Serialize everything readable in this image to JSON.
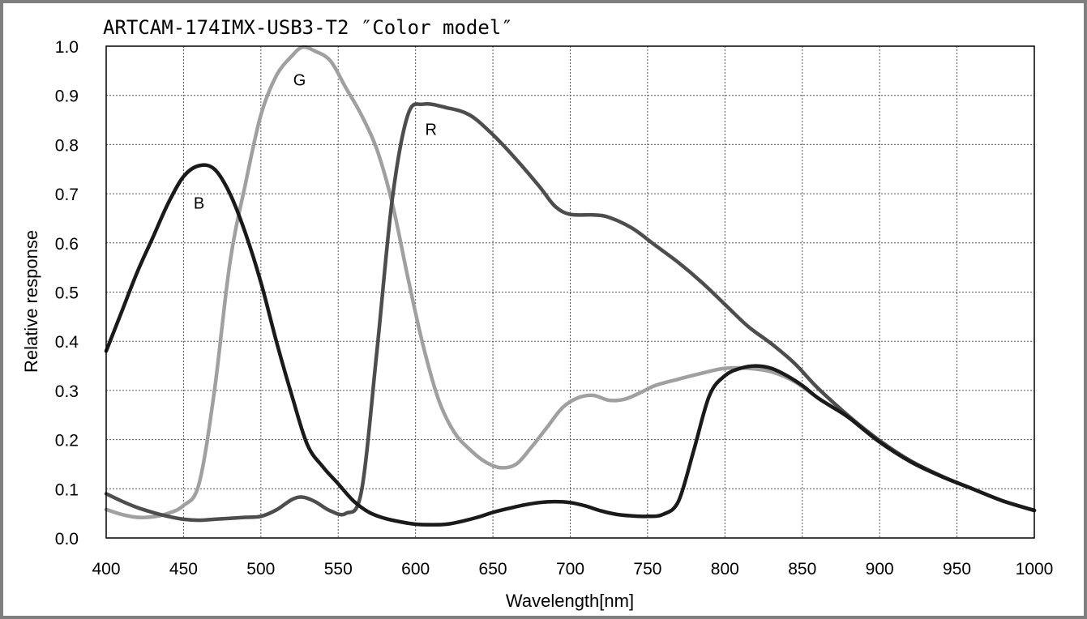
{
  "chart_data": {
    "type": "line",
    "title": "ARTCAM-174IMX-USB3-T2 ″Color model″",
    "xlabel": "Wavelength[nm]",
    "ylabel": "Relative response",
    "xlim": [
      400,
      1000
    ],
    "ylim": [
      0.0,
      1.0
    ],
    "x_ticks": [
      400,
      450,
      500,
      550,
      600,
      650,
      700,
      750,
      800,
      850,
      900,
      950,
      1000
    ],
    "y_ticks": [
      "0.0",
      "0.1",
      "0.2",
      "0.3",
      "0.4",
      "0.5",
      "0.6",
      "0.7",
      "0.8",
      "0.9",
      "1.0"
    ],
    "grid": true,
    "series": [
      {
        "name": "B",
        "color": "#1a1a1a",
        "label_at": [
          460,
          0.67
        ],
        "points": [
          [
            400,
            0.38
          ],
          [
            410,
            0.46
          ],
          [
            420,
            0.54
          ],
          [
            430,
            0.61
          ],
          [
            440,
            0.68
          ],
          [
            450,
            0.735
          ],
          [
            460,
            0.757
          ],
          [
            470,
            0.75
          ],
          [
            480,
            0.7
          ],
          [
            490,
            0.62
          ],
          [
            500,
            0.52
          ],
          [
            510,
            0.4
          ],
          [
            520,
            0.29
          ],
          [
            530,
            0.19
          ],
          [
            540,
            0.145
          ],
          [
            550,
            0.11
          ],
          [
            560,
            0.075
          ],
          [
            570,
            0.052
          ],
          [
            580,
            0.04
          ],
          [
            590,
            0.033
          ],
          [
            600,
            0.028
          ],
          [
            610,
            0.027
          ],
          [
            620,
            0.028
          ],
          [
            630,
            0.034
          ],
          [
            640,
            0.042
          ],
          [
            650,
            0.052
          ],
          [
            660,
            0.06
          ],
          [
            670,
            0.067
          ],
          [
            680,
            0.072
          ],
          [
            690,
            0.074
          ],
          [
            700,
            0.072
          ],
          [
            710,
            0.065
          ],
          [
            720,
            0.055
          ],
          [
            730,
            0.048
          ],
          [
            740,
            0.045
          ],
          [
            750,
            0.044
          ],
          [
            760,
            0.048
          ],
          [
            770,
            0.075
          ],
          [
            780,
            0.18
          ],
          [
            790,
            0.29
          ],
          [
            800,
            0.33
          ],
          [
            810,
            0.345
          ],
          [
            820,
            0.35
          ],
          [
            830,
            0.345
          ],
          [
            840,
            0.33
          ],
          [
            850,
            0.31
          ],
          [
            860,
            0.285
          ],
          [
            870,
            0.265
          ],
          [
            880,
            0.245
          ],
          [
            900,
            0.195
          ],
          [
            920,
            0.155
          ],
          [
            940,
            0.125
          ],
          [
            960,
            0.1
          ],
          [
            980,
            0.075
          ],
          [
            1000,
            0.056
          ]
        ]
      },
      {
        "name": "G",
        "color": "#a0a0a0",
        "label_at": [
          525,
          0.92
        ],
        "points": [
          [
            400,
            0.058
          ],
          [
            410,
            0.048
          ],
          [
            420,
            0.042
          ],
          [
            430,
            0.043
          ],
          [
            440,
            0.05
          ],
          [
            450,
            0.066
          ],
          [
            460,
            0.11
          ],
          [
            470,
            0.3
          ],
          [
            480,
            0.56
          ],
          [
            490,
            0.72
          ],
          [
            500,
            0.86
          ],
          [
            510,
            0.94
          ],
          [
            520,
            0.98
          ],
          [
            527,
            0.998
          ],
          [
            535,
            0.99
          ],
          [
            545,
            0.97
          ],
          [
            555,
            0.915
          ],
          [
            565,
            0.86
          ],
          [
            575,
            0.79
          ],
          [
            585,
            0.68
          ],
          [
            595,
            0.53
          ],
          [
            605,
            0.39
          ],
          [
            615,
            0.28
          ],
          [
            625,
            0.215
          ],
          [
            635,
            0.18
          ],
          [
            645,
            0.155
          ],
          [
            655,
            0.143
          ],
          [
            665,
            0.15
          ],
          [
            675,
            0.185
          ],
          [
            685,
            0.225
          ],
          [
            695,
            0.265
          ],
          [
            705,
            0.285
          ],
          [
            715,
            0.29
          ],
          [
            725,
            0.28
          ],
          [
            735,
            0.282
          ],
          [
            745,
            0.295
          ],
          [
            755,
            0.31
          ],
          [
            770,
            0.323
          ],
          [
            785,
            0.335
          ],
          [
            800,
            0.345
          ],
          [
            815,
            0.345
          ],
          [
            830,
            0.338
          ],
          [
            845,
            0.318
          ],
          [
            860,
            0.285
          ],
          [
            880,
            0.245
          ],
          [
            900,
            0.195
          ],
          [
            920,
            0.155
          ],
          [
            940,
            0.125
          ],
          [
            960,
            0.1
          ],
          [
            980,
            0.075
          ],
          [
            1000,
            0.056
          ]
        ]
      },
      {
        "name": "R",
        "color": "#4d4d4d",
        "label_at": [
          610,
          0.82
        ],
        "points": [
          [
            400,
            0.09
          ],
          [
            410,
            0.075
          ],
          [
            420,
            0.062
          ],
          [
            430,
            0.052
          ],
          [
            440,
            0.044
          ],
          [
            450,
            0.038
          ],
          [
            460,
            0.036
          ],
          [
            470,
            0.038
          ],
          [
            480,
            0.04
          ],
          [
            490,
            0.042
          ],
          [
            500,
            0.044
          ],
          [
            510,
            0.057
          ],
          [
            520,
            0.078
          ],
          [
            527,
            0.083
          ],
          [
            535,
            0.074
          ],
          [
            545,
            0.055
          ],
          [
            555,
            0.05
          ],
          [
            565,
            0.095
          ],
          [
            575,
            0.38
          ],
          [
            585,
            0.69
          ],
          [
            595,
            0.86
          ],
          [
            605,
            0.882
          ],
          [
            620,
            0.875
          ],
          [
            635,
            0.86
          ],
          [
            650,
            0.82
          ],
          [
            665,
            0.77
          ],
          [
            680,
            0.715
          ],
          [
            690,
            0.675
          ],
          [
            700,
            0.658
          ],
          [
            715,
            0.657
          ],
          [
            725,
            0.652
          ],
          [
            740,
            0.63
          ],
          [
            755,
            0.595
          ],
          [
            770,
            0.56
          ],
          [
            785,
            0.52
          ],
          [
            800,
            0.475
          ],
          [
            815,
            0.43
          ],
          [
            830,
            0.395
          ],
          [
            845,
            0.355
          ],
          [
            860,
            0.305
          ],
          [
            880,
            0.248
          ],
          [
            900,
            0.198
          ],
          [
            920,
            0.157
          ],
          [
            940,
            0.126
          ],
          [
            960,
            0.1
          ],
          [
            980,
            0.075
          ],
          [
            1000,
            0.056
          ]
        ]
      }
    ]
  }
}
